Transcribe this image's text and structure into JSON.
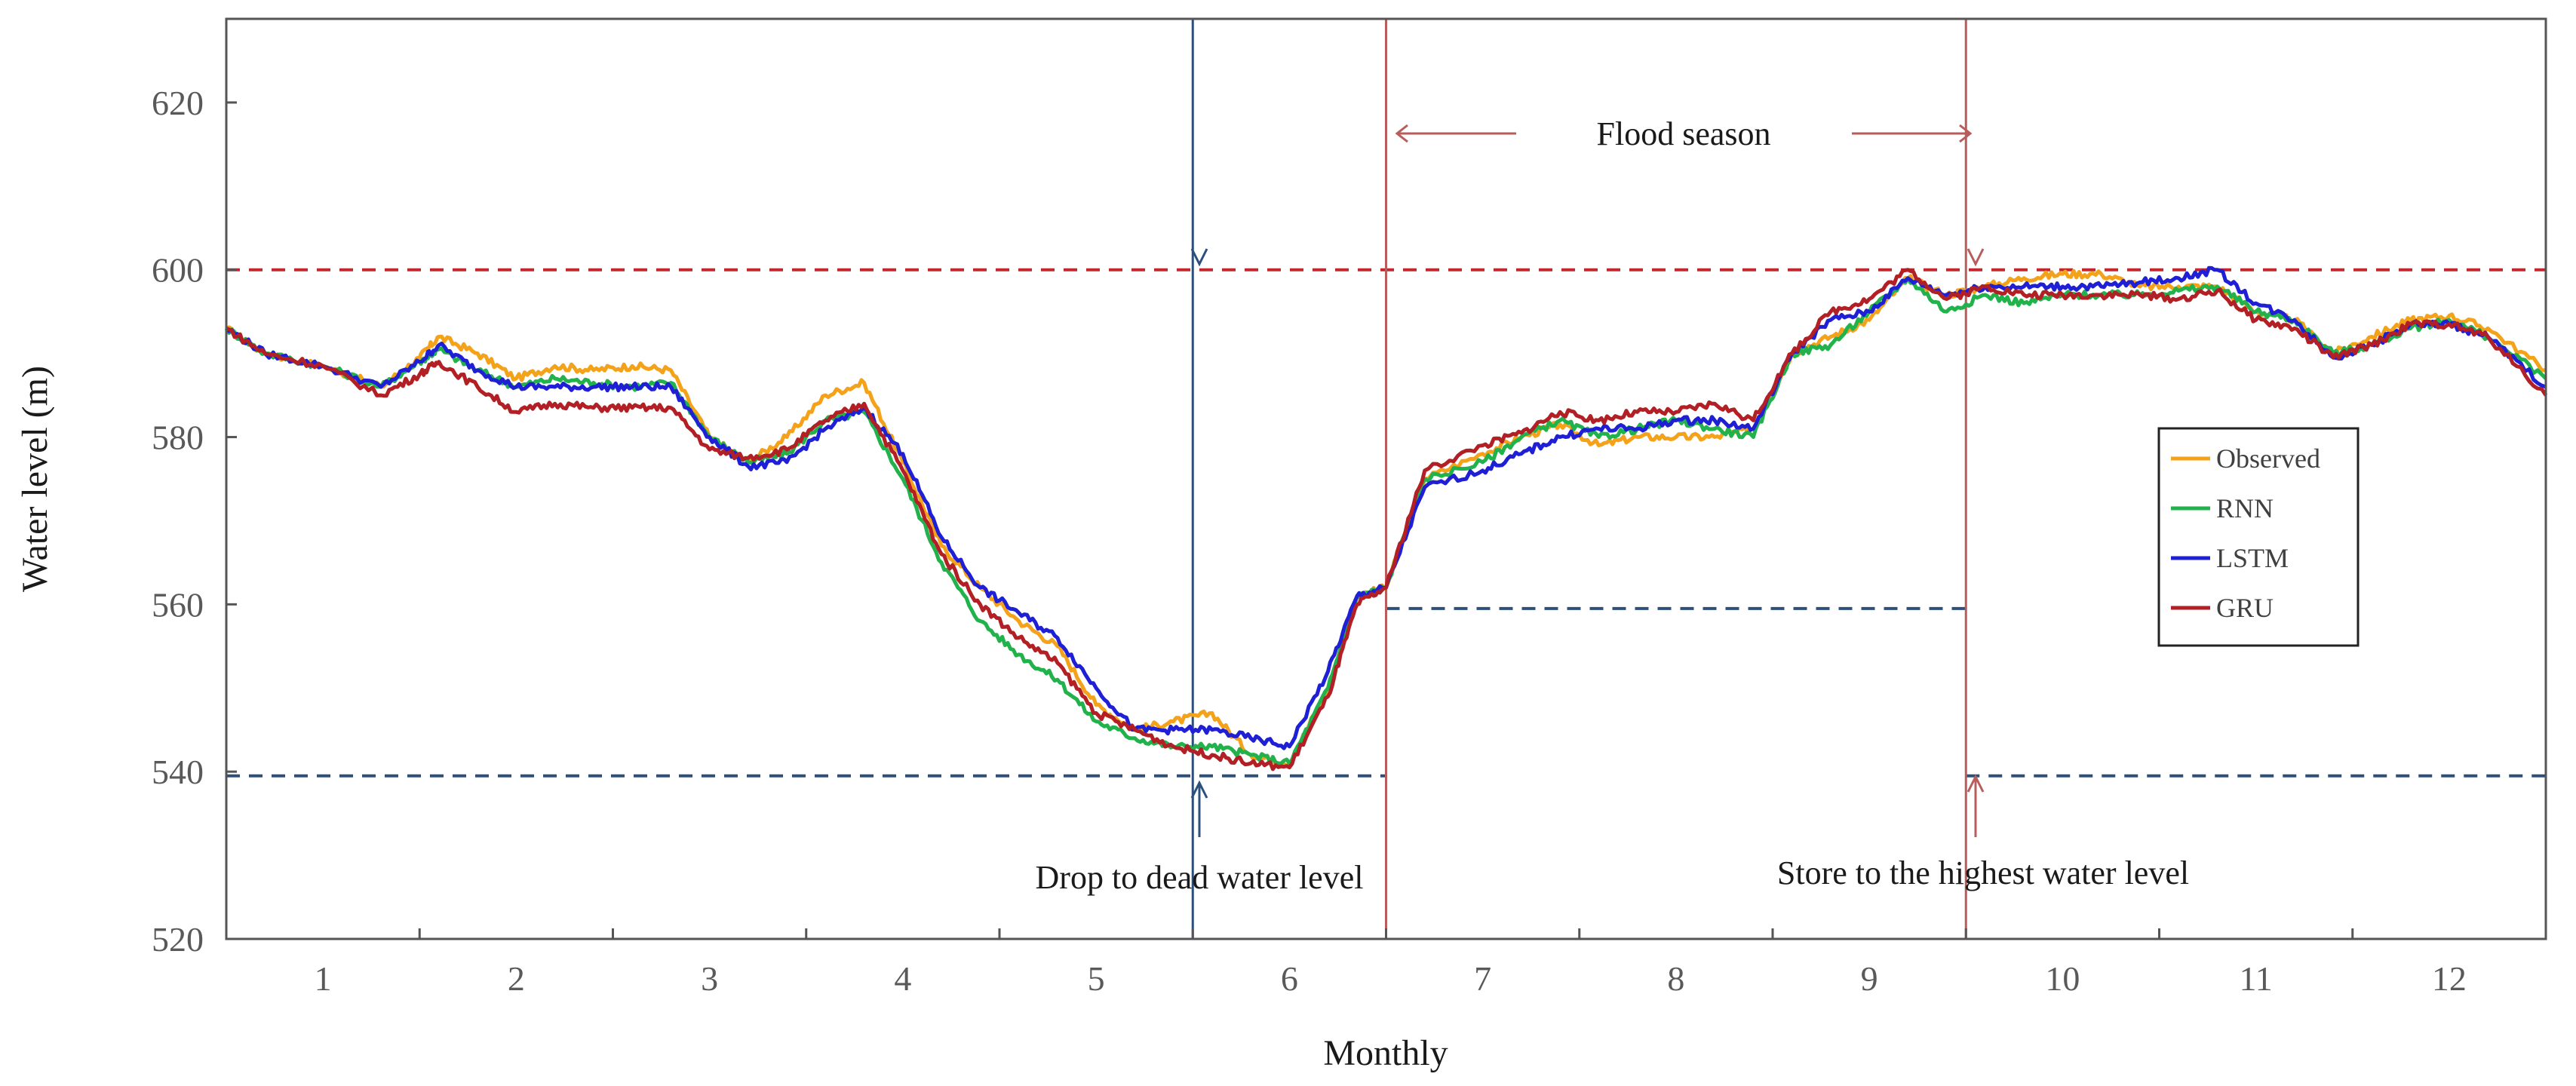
{
  "chart_data": {
    "type": "line",
    "title": "",
    "xlabel": "Monthly",
    "ylabel": "Water level (m)",
    "xlim": [
      0.5,
      12.5
    ],
    "ylim": [
      520,
      630
    ],
    "yticks": [
      520,
      540,
      560,
      580,
      600,
      620
    ],
    "xticks": [
      1,
      2,
      3,
      4,
      5,
      6,
      7,
      8,
      9,
      10,
      11,
      12
    ],
    "grid": false,
    "legend_position": "right",
    "colors": {
      "Observed": "#f5a21b",
      "RNN": "#22b24c",
      "LSTM": "#1f1fd6",
      "GRU": "#b21f24",
      "dead_level_line": "#2d4f7c",
      "high_level_line": "#c0282d",
      "flood_marker": "#b85c5c",
      "dead_marker": "#2d4f7c"
    },
    "x": [
      0.5,
      0.7,
      1.0,
      1.3,
      1.5,
      1.6,
      1.8,
      2.0,
      2.2,
      2.4,
      2.6,
      2.8,
      3.0,
      3.2,
      3.4,
      3.6,
      3.8,
      4.0,
      4.2,
      4.4,
      4.6,
      4.8,
      5.0,
      5.2,
      5.4,
      5.6,
      5.8,
      6.0,
      6.2,
      6.35,
      6.5,
      6.7,
      7.0,
      7.2,
      7.4,
      7.6,
      7.8,
      8.0,
      8.2,
      8.4,
      8.6,
      8.8,
      9.0,
      9.2,
      9.4,
      9.6,
      9.8,
      10.0,
      10.2,
      10.4,
      10.6,
      10.8,
      11.0,
      11.2,
      11.4,
      11.6,
      11.8,
      12.0,
      12.2,
      12.5
    ],
    "series": [
      {
        "name": "Observed",
        "values": [
          593,
          590,
          588.5,
          586,
          589.5,
          592,
          590,
          587,
          588.5,
          588,
          588.5,
          588,
          580,
          577,
          580,
          585,
          586.5,
          577,
          567,
          562,
          558,
          555,
          548,
          545,
          546,
          547,
          542,
          541,
          550,
          561,
          562,
          575,
          578,
          580,
          581.5,
          579,
          580,
          580,
          580,
          581,
          590,
          592,
          594,
          599,
          597,
          598,
          599,
          599.5,
          599.5,
          598,
          598,
          598,
          595,
          594,
          590,
          592,
          594,
          594.5,
          593,
          588
        ]
      },
      {
        "name": "RNN",
        "values": [
          593,
          590,
          588.5,
          586,
          589,
          590.5,
          588,
          586,
          587,
          586.5,
          586,
          586.5,
          580,
          577,
          578,
          582,
          583,
          575,
          565,
          558,
          554,
          551,
          546,
          544,
          543,
          543,
          542,
          541,
          550,
          561,
          562,
          575,
          577,
          580,
          582,
          580,
          581,
          582,
          581,
          580,
          590,
          591,
          595,
          599,
          595,
          597,
          596,
          597,
          597,
          597,
          597.5,
          598,
          595,
          594,
          590,
          591,
          593,
          594,
          592,
          587
        ]
      },
      {
        "name": "LSTM",
        "values": [
          593,
          590,
          588.5,
          586,
          589,
          591,
          588,
          586,
          586,
          586,
          586,
          586,
          580,
          576.5,
          577,
          581,
          583.5,
          578,
          568,
          562,
          559,
          556,
          550,
          545,
          545,
          545,
          544,
          543,
          552,
          561,
          562,
          574,
          576,
          578,
          580,
          581,
          581,
          582,
          582,
          581,
          590,
          594,
          595,
          599,
          597,
          598,
          598,
          598,
          598,
          598.5,
          599,
          600,
          596,
          594,
          589.5,
          591,
          593.5,
          593.5,
          592,
          586
        ]
      },
      {
        "name": "GRU",
        "values": [
          593,
          590,
          588.5,
          585,
          587.5,
          589,
          586,
          583,
          584,
          583.5,
          583.5,
          583.5,
          578.5,
          577.5,
          578.5,
          582,
          584,
          576,
          566,
          560,
          556,
          553,
          547,
          545,
          543,
          542,
          541,
          540.5,
          549,
          560,
          562,
          576,
          579,
          580.5,
          583,
          582,
          583,
          583,
          584,
          582,
          590,
          595,
          596.5,
          600,
          596.5,
          598,
          597,
          597,
          597,
          597,
          596.5,
          597.5,
          594,
          593,
          589.5,
          591,
          593.5,
          593.5,
          592,
          585
        ]
      }
    ],
    "reference_lines": [
      {
        "from": 0.5,
        "to": 6.5,
        "y": 539.5
      },
      {
        "from": 6.5,
        "to": 9.5,
        "y": 559.5
      },
      {
        "from": 9.5,
        "to": 12.5,
        "y": 539.5
      },
      {
        "from": 0.5,
        "to": 12.5,
        "y": 600
      }
    ],
    "vertical_markers": [
      {
        "x": 5.5,
        "role": "dead"
      },
      {
        "x": 6.5,
        "role": "flood"
      },
      {
        "x": 9.5,
        "role": "flood"
      }
    ],
    "annotations": {
      "flood_season": "Flood season",
      "drop_to_dead": "Drop to dead water level",
      "store_highest": "Store to the highest water level"
    }
  }
}
